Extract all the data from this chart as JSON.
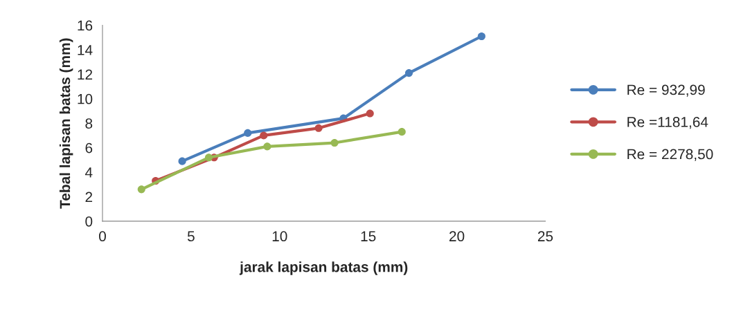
{
  "chart_data": {
    "type": "line",
    "xlabel": "jarak lapisan batas (mm)",
    "ylabel": "Tebal lapisan batas (mm)",
    "xlim": [
      0,
      25
    ],
    "xticks": [
      0,
      5,
      10,
      15,
      20,
      25
    ],
    "ylim": [
      0,
      16
    ],
    "yticks": [
      0,
      2,
      4,
      6,
      8,
      10,
      12,
      14,
      16
    ],
    "grid": false,
    "legend": "right",
    "marker": "circle",
    "line_style": "solid",
    "series": [
      {
        "name": "Re = 932,99",
        "color": "#4a7ebb",
        "x": [
          4.5,
          8.2,
          13.6,
          17.3,
          21.4
        ],
        "values": [
          4.9,
          7.2,
          8.4,
          12.1,
          15.1
        ]
      },
      {
        "name": "Re =1181,64",
        "color": "#be4b48",
        "x": [
          3.0,
          6.3,
          9.1,
          12.2,
          15.1
        ],
        "values": [
          3.3,
          5.2,
          7.0,
          7.6,
          8.8
        ]
      },
      {
        "name": "Re = 2278,50",
        "color": "#98b954",
        "x": [
          2.2,
          6.0,
          9.3,
          13.1,
          16.9
        ],
        "values": [
          2.6,
          5.2,
          6.1,
          6.4,
          7.3
        ]
      }
    ]
  }
}
